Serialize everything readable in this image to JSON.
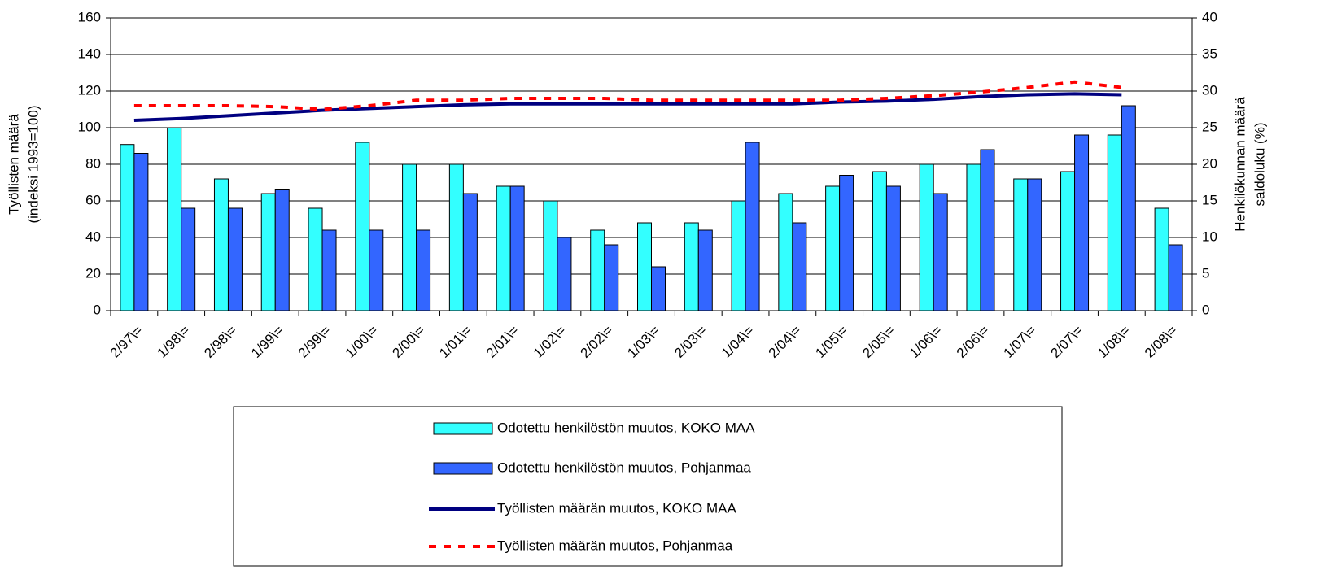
{
  "chart_data": {
    "type": "bar",
    "categories": [
      "2/97\\=",
      "1/98\\=",
      "2/98\\=",
      "1/99\\=",
      "2/99\\=",
      "1/00\\=",
      "2/00\\=",
      "1/01\\=",
      "2/01\\=",
      "1/02\\=",
      "2/02\\=",
      "1/03\\=",
      "2/03\\=",
      "1/04\\=",
      "2/04\\=",
      "1/05\\=",
      "2/05\\=",
      "1/06\\=",
      "2/06\\=",
      "1/07\\=",
      "2/07\\=",
      "1/08\\=",
      "2/08\\="
    ],
    "y_label": [
      "Työllisten määrä",
      "(indeksi 1993=100)"
    ],
    "y2_label": [
      "Henkilökunnan määrä",
      "saldoluku (%)"
    ],
    "ylim": [
      0,
      160
    ],
    "yticks": [
      0,
      20,
      40,
      60,
      80,
      100,
      120,
      140,
      160
    ],
    "y2lim": [
      0,
      40
    ],
    "y2ticks": [
      0,
      5,
      10,
      15,
      20,
      25,
      30,
      35,
      40
    ],
    "grid": true,
    "series": [
      {
        "name": "Odotettu henkilöstön muutos, KOKO MAA",
        "type": "bar",
        "axis": "y2",
        "color": "#33ffff",
        "values": [
          22.7,
          25,
          18,
          16,
          14,
          23,
          20,
          20,
          17,
          15,
          11,
          12,
          12,
          15,
          16,
          17,
          19,
          20,
          20,
          18,
          19,
          24,
          14
        ]
      },
      {
        "name": "Odotettu henkilöstön muutos, Pohjanmaa",
        "type": "bar",
        "axis": "y2",
        "color": "#3366ff",
        "values": [
          21.5,
          14,
          14,
          16.5,
          11,
          11,
          11,
          16,
          17,
          10,
          9,
          6,
          11,
          23,
          12,
          18.5,
          17,
          16,
          22,
          18,
          24,
          28,
          9
        ]
      },
      {
        "name": "Työllisten määrän muutos, KOKO MAA",
        "type": "line",
        "color": "#000080",
        "dash": false,
        "values": [
          104,
          105,
          106.5,
          108,
          109.5,
          110.5,
          111.5,
          112.5,
          113,
          113,
          113,
          113,
          113,
          113,
          113,
          114,
          114.5,
          115.5,
          117,
          118,
          118.5,
          118,
          null
        ]
      },
      {
        "name": "Työllisten määrän muutos, Pohjanmaa",
        "type": "line",
        "color": "#ff0000",
        "dash": true,
        "values": [
          112,
          112,
          112,
          111.5,
          110,
          112,
          115,
          115,
          116,
          116,
          116,
          115,
          115,
          115,
          115,
          115,
          116,
          117.5,
          119.5,
          122,
          125,
          122,
          null
        ]
      }
    ]
  }
}
